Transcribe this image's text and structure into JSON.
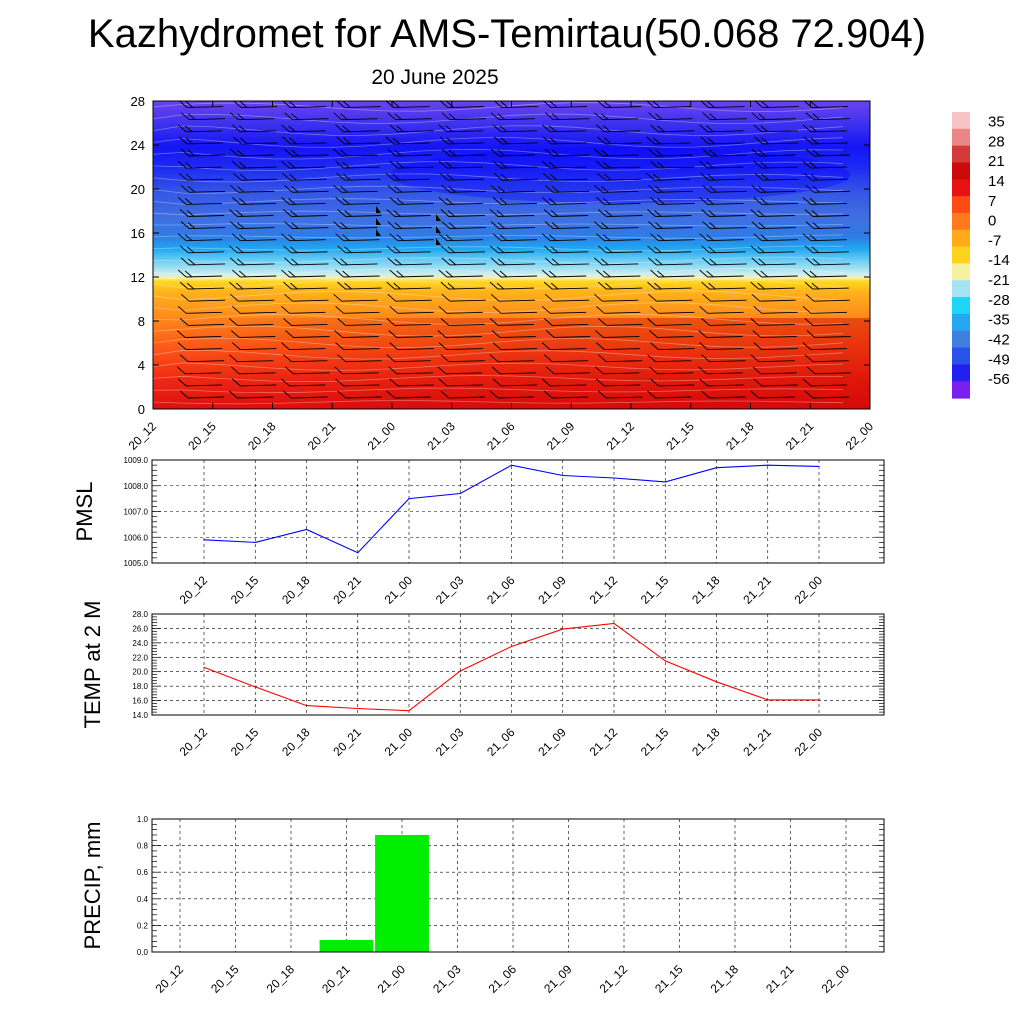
{
  "header": {
    "title": "Kazhydromet for AMS-Temirtau(50.068 72.904)",
    "subtitle": "20 June 2025"
  },
  "chart_data": [
    {
      "type": "heatmap",
      "name": "height-time cross section",
      "x_ticks": [
        "20_12",
        "20_15",
        "20_18",
        "20_21",
        "21_00",
        "21_03",
        "21_06",
        "21_09",
        "21_12",
        "21_15",
        "21_18",
        "21_21",
        "22_00"
      ],
      "y_ticks": [
        0,
        4,
        8,
        12,
        16,
        20,
        24,
        28
      ],
      "ylim": [
        0,
        28
      ],
      "colorbar": {
        "labels": [
          "35",
          "28",
          "21",
          "14",
          "7",
          "0",
          "-7",
          "-14",
          "-21",
          "-28",
          "-35",
          "-42",
          "-49",
          "-56"
        ],
        "range": [
          -63,
          38
        ],
        "colors": [
          "#7a1fef",
          "#2020f0",
          "#2b52e8",
          "#3f7fe0",
          "#25a8f0",
          "#1ed6f5",
          "#a6e3f2",
          "#f4f2a0",
          "#ffd21e",
          "#ffaa18",
          "#ff7a1a",
          "#ff4a16",
          "#e81212",
          "#cc0a0a",
          "#d53a3a",
          "#eb8686",
          "#f6c4c4"
        ]
      },
      "wind_barbs": true
    },
    {
      "type": "line",
      "ylabel": "PMSL",
      "x": [
        "20_12",
        "20_15",
        "20_18",
        "20_21",
        "21_00",
        "21_03",
        "21_06",
        "21_09",
        "21_12",
        "21_15",
        "21_18",
        "21_21",
        "22_00"
      ],
      "y": [
        1005.9,
        1005.8,
        1006.3,
        1005.4,
        1007.5,
        1007.7,
        1008.8,
        1008.4,
        1008.3,
        1008.15,
        1008.7,
        1008.8,
        1008.75
      ],
      "ylim": [
        1005.0,
        1009.0
      ],
      "y_ticks": [
        "1005.0",
        "1006.0",
        "1007.0",
        "1008.0",
        "1009.0"
      ],
      "color": "#0000ff",
      "grid": true
    },
    {
      "type": "line",
      "ylabel": "TEMP at 2 M",
      "x": [
        "20_12",
        "20_15",
        "20_18",
        "20_21",
        "21_00",
        "21_03",
        "21_06",
        "21_09",
        "21_12",
        "21_15",
        "21_18",
        "21_21",
        "22_00"
      ],
      "y": [
        20.6,
        17.9,
        15.3,
        14.9,
        14.6,
        20.1,
        23.5,
        25.9,
        26.7,
        21.5,
        18.6,
        16.1,
        16.1
      ],
      "ylim": [
        14.0,
        28.0
      ],
      "y_ticks": [
        "14.0",
        "16.0",
        "18.0",
        "20.0",
        "22.0",
        "24.0",
        "26.0",
        "28.0"
      ],
      "color": "#ff0000",
      "grid": true
    },
    {
      "type": "bar",
      "ylabel": "PRECIP, mm",
      "categories": [
        "20_12",
        "20_15",
        "20_18",
        "20_21",
        "21_00",
        "21_03",
        "21_06",
        "21_09",
        "21_12",
        "21_15",
        "21_18",
        "21_21",
        "22_00"
      ],
      "values": [
        0,
        0,
        0,
        0.09,
        0.88,
        0,
        0,
        0,
        0,
        0,
        0,
        0,
        0
      ],
      "ylim": [
        0.0,
        1.0
      ],
      "y_ticks": [
        "0.0",
        "0.2",
        "0.4",
        "0.6",
        "0.8",
        "1.0"
      ],
      "color": "#00ee00",
      "grid": true
    }
  ]
}
